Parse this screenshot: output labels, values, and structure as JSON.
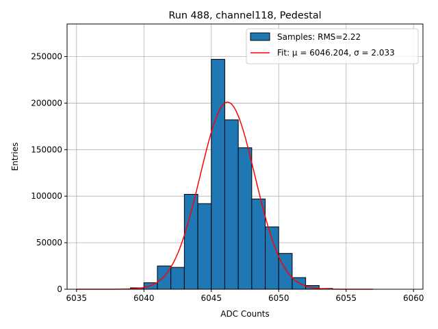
{
  "chart_data": {
    "type": "bar",
    "title": "Run 488, channel118, Pedestal",
    "xlabel": "ADC Counts",
    "ylabel": "Entries",
    "xlim": [
      6034.3,
      6060.7
    ],
    "ylim": [
      0,
      285000
    ],
    "xticks": [
      6035,
      6040,
      6045,
      6050,
      6055,
      6060
    ],
    "yticks": [
      0,
      50000,
      100000,
      150000,
      200000,
      250000
    ],
    "xtick_labels": [
      "6035",
      "6040",
      "6045",
      "6050",
      "6055",
      "6060"
    ],
    "ytick_labels": [
      "0",
      "50000",
      "100000",
      "150000",
      "200000",
      "250000"
    ],
    "grid": true,
    "legend_position": "top-right",
    "histogram": {
      "name": "Samples: RMS=2.22",
      "color": "#1f77b4",
      "bin_width": 1,
      "bins": [
        {
          "left": 6039,
          "count": 1500
        },
        {
          "left": 6040,
          "count": 7000
        },
        {
          "left": 6041,
          "count": 25000
        },
        {
          "left": 6042,
          "count": 23500
        },
        {
          "left": 6043,
          "count": 102000
        },
        {
          "left": 6044,
          "count": 92000
        },
        {
          "left": 6045,
          "count": 247000
        },
        {
          "left": 6046,
          "count": 182000
        },
        {
          "left": 6047,
          "count": 152000
        },
        {
          "left": 6048,
          "count": 97000
        },
        {
          "left": 6049,
          "count": 67000
        },
        {
          "left": 6050,
          "count": 38500
        },
        {
          "left": 6051,
          "count": 12500
        },
        {
          "left": 6052,
          "count": 4000
        },
        {
          "left": 6053,
          "count": 800
        }
      ]
    },
    "fit": {
      "name": "Fit: μ = 6046.204, σ = 2.033",
      "color": "#ff0000",
      "mu": 6046.204,
      "sigma": 2.033,
      "amplitude": 201000,
      "x_range": [
        6035,
        6057
      ]
    }
  }
}
